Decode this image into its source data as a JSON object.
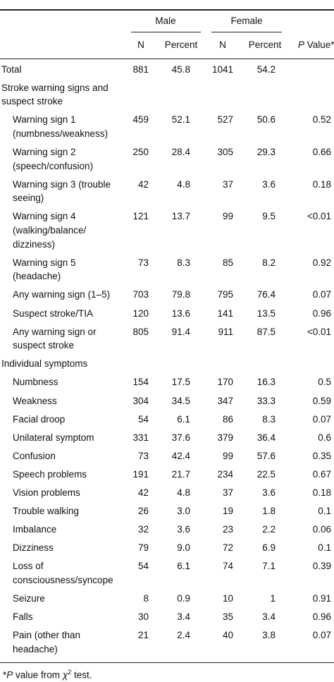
{
  "header": {
    "groups": [
      "Male",
      "Female"
    ],
    "columns": [
      "N",
      "Percent",
      "N",
      "Percent"
    ],
    "p_value": {
      "italic": "P",
      "rest": " Value*"
    }
  },
  "table": {
    "rows": [
      {
        "label": [
          "Total"
        ],
        "indent": false,
        "cells": [
          "881",
          "45.8",
          "1041",
          "54.2",
          ""
        ]
      },
      {
        "label": [
          "Stroke warning signs and",
          "suspect stroke"
        ],
        "indent": false,
        "cells": []
      },
      {
        "label": [
          "Warning sign 1",
          "(numbness/weakness)"
        ],
        "indent": true,
        "cells": [
          "459",
          "52.1",
          "527",
          "50.6",
          "0.52"
        ]
      },
      {
        "label": [
          "Warning sign 2",
          "(speech/confusion)"
        ],
        "indent": true,
        "cells": [
          "250",
          "28.4",
          "305",
          "29.3",
          "0.66"
        ]
      },
      {
        "label": [
          "Warning sign 3 (trouble",
          "seeing)"
        ],
        "indent": true,
        "cells": [
          "42",
          "4.8",
          "37",
          "3.6",
          "0.18"
        ]
      },
      {
        "label": [
          "Warning sign 4",
          "(walking/balance/",
          "dizziness)"
        ],
        "indent": true,
        "cells": [
          "121",
          "13.7",
          "99",
          "9.5",
          "<0.01"
        ]
      },
      {
        "label": [
          "Warning sign 5",
          "(headache)"
        ],
        "indent": true,
        "cells": [
          "73",
          "8.3",
          "85",
          "8.2",
          "0.92"
        ]
      },
      {
        "label": [
          "Any warning sign (1–5)"
        ],
        "indent": true,
        "cells": [
          "703",
          "79.8",
          "795",
          "76.4",
          "0.07"
        ]
      },
      {
        "label": [
          "Suspect stroke/TIA"
        ],
        "indent": true,
        "cells": [
          "120",
          "13.6",
          "141",
          "13.5",
          "0.96"
        ]
      },
      {
        "label": [
          "Any warning sign or",
          "suspect stroke"
        ],
        "indent": true,
        "cells": [
          "805",
          "91.4",
          "911",
          "87.5",
          "<0.01"
        ]
      },
      {
        "label": [
          "Individual symptoms"
        ],
        "indent": false,
        "cells": []
      },
      {
        "label": [
          "Numbness"
        ],
        "indent": true,
        "cells": [
          "154",
          "17.5",
          "170",
          "16.3",
          "0.5"
        ]
      },
      {
        "label": [
          "Weakness"
        ],
        "indent": true,
        "cells": [
          "304",
          "34.5",
          "347",
          "33.3",
          "0.59"
        ]
      },
      {
        "label": [
          "Facial droop"
        ],
        "indent": true,
        "cells": [
          "54",
          "6.1",
          "86",
          "8.3",
          "0.07"
        ]
      },
      {
        "label": [
          "Unilateral symptom"
        ],
        "indent": true,
        "cells": [
          "331",
          "37.6",
          "379",
          "36.4",
          "0.6"
        ]
      },
      {
        "label": [
          "Confusion"
        ],
        "indent": true,
        "cells": [
          "73",
          "42.4",
          "99",
          "57.6",
          "0.35"
        ]
      },
      {
        "label": [
          "Speech problems"
        ],
        "indent": true,
        "cells": [
          "191",
          "21.7",
          "234",
          "22.5",
          "0.67"
        ]
      },
      {
        "label": [
          "Vision problems"
        ],
        "indent": true,
        "cells": [
          "42",
          "4.8",
          "37",
          "3.6",
          "0.18"
        ]
      },
      {
        "label": [
          "Trouble walking"
        ],
        "indent": true,
        "cells": [
          "26",
          "3.0",
          "19",
          "1.8",
          "0.1"
        ]
      },
      {
        "label": [
          "Imbalance"
        ],
        "indent": true,
        "cells": [
          "32",
          "3.6",
          "23",
          "2.2",
          "0.06"
        ]
      },
      {
        "label": [
          "Dizziness"
        ],
        "indent": true,
        "cells": [
          "79",
          "9.0",
          "72",
          "6.9",
          "0.1"
        ]
      },
      {
        "label": [
          "Loss of",
          "consciousness/syncope"
        ],
        "indent": true,
        "cells": [
          "54",
          "6.1",
          "74",
          "7.1",
          "0.39"
        ]
      },
      {
        "label": [
          "Seizure"
        ],
        "indent": true,
        "cells": [
          "8",
          "0.9",
          "10",
          "1",
          "0.91"
        ]
      },
      {
        "label": [
          "Falls"
        ],
        "indent": true,
        "cells": [
          "30",
          "3.4",
          "35",
          "3.4",
          "0.96"
        ]
      },
      {
        "label": [
          "Pain (other than",
          "headache)"
        ],
        "indent": true,
        "cells": [
          "21",
          "2.4",
          "40",
          "3.8",
          "0.07"
        ]
      }
    ]
  },
  "footnote": {
    "mark": "*",
    "p": "P",
    "text": " value from ",
    "chi": "χ",
    "sup": "2",
    "end": " test."
  }
}
